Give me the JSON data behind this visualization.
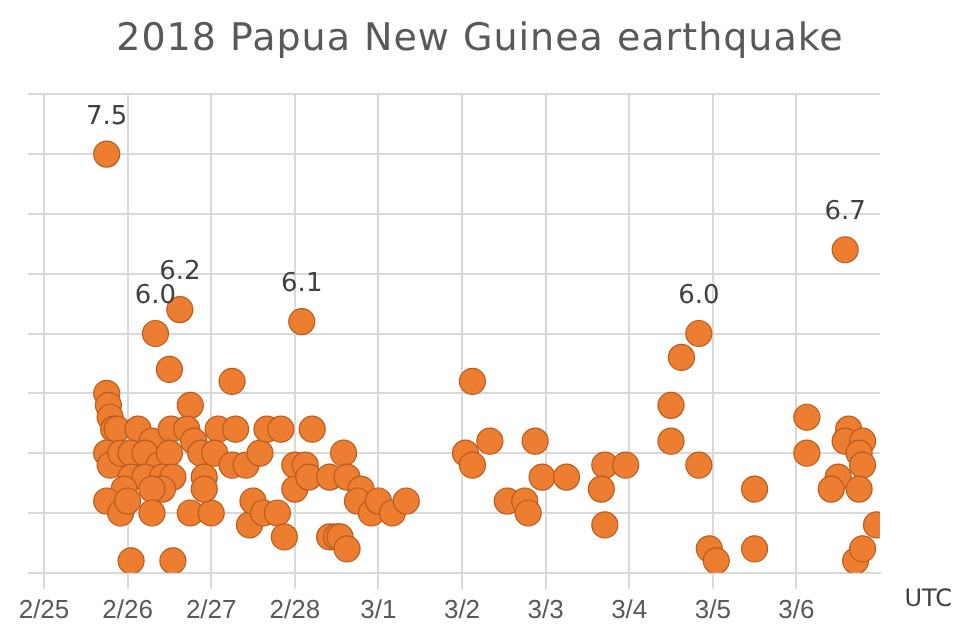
{
  "chart_data": {
    "type": "scatter",
    "title": "2018 Papua New Guinea earthquake",
    "xlabel": "UTC",
    "xlim": [
      "--02-25",
      "--03-07"
    ],
    "xticks": [
      {
        "value": "--02-25",
        "label": "2/25"
      },
      {
        "value": "--02-26",
        "label": "2/26"
      },
      {
        "value": "--02-27",
        "label": "2/27"
      },
      {
        "value": "--02-28",
        "label": "2/28"
      },
      {
        "value": "--03-01",
        "label": "3/1"
      },
      {
        "value": "--03-02",
        "label": "3/2"
      },
      {
        "value": "--03-03",
        "label": "3/3"
      },
      {
        "value": "--03-04",
        "label": "3/4"
      },
      {
        "value": "--03-05",
        "label": "3/5"
      },
      {
        "value": "--03-06",
        "label": "3/6"
      }
    ],
    "ylim": [
      4,
      8
    ],
    "yticks": [
      4,
      4.5,
      5,
      5.5,
      6,
      6.5,
      7,
      7.5,
      8
    ],
    "tick_labels": "x",
    "grid": true,
    "marker": "circle",
    "series": [
      {
        "color": "#ed7d31",
        "x": [
          "--02-25T18:00",
          "--02-26T08:00",
          "--02-26T15:00",
          "--02-28T02:00",
          "--02-26T12:00",
          "--02-27T06:00",
          "--02-26T18:00",
          "--02-25T18:00",
          "--02-25T18:30",
          "--02-25T19:00",
          "--02-25T20:00",
          "--02-25T21:00",
          "--02-26T03:00",
          "--02-26T07:00",
          "--02-26T12:30",
          "--02-26T17:00",
          "--02-26T19:00",
          "--02-26T21:00",
          "--02-27T02:00",
          "--02-27T07:00",
          "--02-27T01:00",
          "--02-25T18:00",
          "--02-25T19:00",
          "--02-25T22:00",
          "--02-26T01:00",
          "--02-26T05:00",
          "--02-26T09:00",
          "--02-26T12:00",
          "--02-26T01:00",
          "--02-26T05:00",
          "--02-26T10:00",
          "--02-26T13:00",
          "--02-25T23:00",
          "--02-26T10:00",
          "--02-26T07:00",
          "--02-25T18:00",
          "--02-25T22:00",
          "--02-26T00:00",
          "--02-26T07:00",
          "--02-26T01:00",
          "--02-26T13:00",
          "--02-26T18:00",
          "--02-27T00:00",
          "--02-26T22:00",
          "--02-26T22:00",
          "--02-27T06:00",
          "--02-27T10:00",
          "--02-27T14:00",
          "--02-27T16:00",
          "--02-27T20:00",
          "--02-28T05:00",
          "--02-27T11:00",
          "--02-27T12:00",
          "--02-27T15:00",
          "--02-27T19:00",
          "--02-27T21:00",
          "--02-28T00:00",
          "--02-28T03:00",
          "--02-28T00:00",
          "--02-28T04:00",
          "--02-28T14:00",
          "--02-28T10:00",
          "--02-28T15:00",
          "--02-28T19:00",
          "--02-28T18:00",
          "--02-28T22:00",
          "--03-01T00:00",
          "--03-01T04:00",
          "--03-01T08:00",
          "--02-28T10:00",
          "--02-28T12:00",
          "--02-28T13:00",
          "--02-28T15:00",
          "--03-02T03:00",
          "--03-02T01:00",
          "--03-02T03:00",
          "--03-02T08:00",
          "--03-02T13:00",
          "--03-02T18:00",
          "--03-02T19:00",
          "--03-02T21:00",
          "--03-02T23:00",
          "--03-03T06:00",
          "--03-03T17:00",
          "--03-03T16:00",
          "--03-03T17:00",
          "--03-03T23:00",
          "--03-04T12:00",
          "--03-04T12:00",
          "--03-04T15:00",
          "--03-04T20:00",
          "--03-04T20:00",
          "--03-04T23:00",
          "--03-05T01:00",
          "--03-05T12:00",
          "--03-05T12:00",
          "--03-06T03:00",
          "--03-06T03:00",
          "--03-06T14:00",
          "--03-06T15:00",
          "--03-06T14:00",
          "--03-06T19:00",
          "--03-06T18:00",
          "--03-06T19:00",
          "--03-06T12:00",
          "--03-06T10:00",
          "--03-06T18:00",
          "--03-06T17:00",
          "--03-06T19:00",
          "--03-06T23:00"
        ],
        "values": [
          7.5,
          6.0,
          6.2,
          6.1,
          5.7,
          5.6,
          5.4,
          5.5,
          5.4,
          5.3,
          5.2,
          5.2,
          5.2,
          5.1,
          5.2,
          5.2,
          5.1,
          5.0,
          5.2,
          5.2,
          5.0,
          5.0,
          4.9,
          5.0,
          5.0,
          5.0,
          4.9,
          5.0,
          4.8,
          4.8,
          4.8,
          4.8,
          4.7,
          4.7,
          4.7,
          4.6,
          4.5,
          4.6,
          4.5,
          4.1,
          4.1,
          4.5,
          4.5,
          4.8,
          4.7,
          4.9,
          4.9,
          5.0,
          5.2,
          5.2,
          5.2,
          4.4,
          4.6,
          4.5,
          4.5,
          4.3,
          4.9,
          4.9,
          4.7,
          4.8,
          5.0,
          4.8,
          4.8,
          4.7,
          4.6,
          4.5,
          4.6,
          4.5,
          4.6,
          4.3,
          4.3,
          4.3,
          4.2,
          5.6,
          5.0,
          4.9,
          5.1,
          4.6,
          4.6,
          4.5,
          5.1,
          4.8,
          4.8,
          4.9,
          4.7,
          4.4,
          4.9,
          5.4,
          5.1,
          5.8,
          6.0,
          4.9,
          4.2,
          4.1,
          4.7,
          4.2,
          5.3,
          5.0,
          6.7,
          5.2,
          5.1,
          5.1,
          5.0,
          4.9,
          4.8,
          4.7,
          4.7,
          4.1,
          4.2,
          4.4
        ],
        "value_labels": [
          "7.5",
          "6.0",
          "6.2",
          "6.1",
          null,
          null,
          null,
          null,
          null,
          null,
          null,
          null,
          null,
          null,
          null,
          null,
          null,
          null,
          null,
          null,
          null,
          null,
          null,
          null,
          null,
          null,
          null,
          null,
          null,
          null,
          null,
          null,
          null,
          null,
          null,
          null,
          null,
          null,
          null,
          null,
          null,
          null,
          null,
          null,
          null,
          null,
          null,
          null,
          null,
          null,
          null,
          null,
          null,
          null,
          null,
          null,
          null,
          null,
          null,
          null,
          null,
          null,
          null,
          null,
          null,
          null,
          null,
          null,
          null,
          null,
          null,
          null,
          null,
          null,
          null,
          null,
          null,
          null,
          null,
          null,
          null,
          null,
          null,
          null,
          null,
          null,
          null,
          null,
          null,
          null,
          "6.0",
          null,
          null,
          null,
          null,
          null,
          null,
          null,
          "6.7",
          null,
          null,
          null,
          null,
          null,
          null,
          null,
          null,
          null,
          null,
          null
        ]
      }
    ]
  }
}
